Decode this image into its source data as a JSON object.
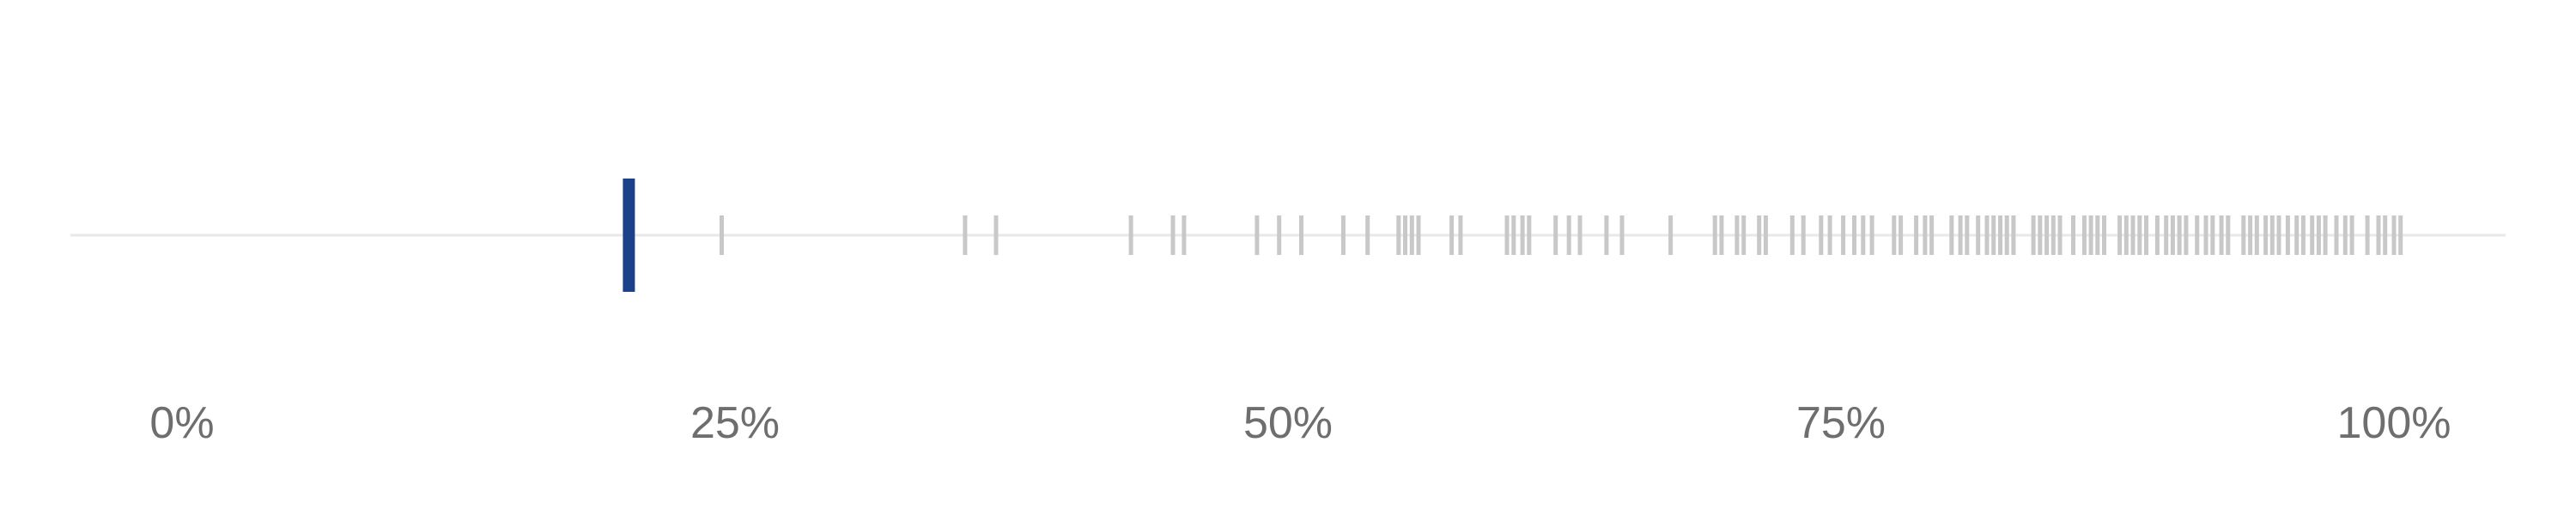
{
  "chart_data": {
    "type": "strip",
    "xlim": [
      0,
      100
    ],
    "x_tick_labels": [
      "0%",
      "25%",
      "50%",
      "75%",
      "100%"
    ],
    "x_tick_values": [
      0,
      25,
      50,
      75,
      100
    ],
    "highlight": {
      "value": 20.2,
      "color": "#1a4189"
    },
    "others": {
      "color": "#c8c8c8",
      "values": [
        24.4,
        35.4,
        36.8,
        42.9,
        44.8,
        45.3,
        48.6,
        49.6,
        50.6,
        52.5,
        53.6,
        55.0,
        55.3,
        55.6,
        55.9,
        57.4,
        57.8,
        59.9,
        60.2,
        60.6,
        60.9,
        62.1,
        62.7,
        63.2,
        64.4,
        65.1,
        67.3,
        69.3,
        69.6,
        70.3,
        70.6,
        71.3,
        71.6,
        72.8,
        73.3,
        74.1,
        74.5,
        75.1,
        75.6,
        76.0,
        76.4,
        77.4,
        77.7,
        78.4,
        78.8,
        79.1,
        80.0,
        80.4,
        80.7,
        81.2,
        81.6,
        81.9,
        82.2,
        82.5,
        82.8,
        83.7,
        84.0,
        84.3,
        84.6,
        84.9,
        85.5,
        86.0,
        86.3,
        86.6,
        86.9,
        87.6,
        87.9,
        88.2,
        88.5,
        88.8,
        89.3,
        89.7,
        90.0,
        90.3,
        90.6,
        91.1,
        91.5,
        91.8,
        92.2,
        92.5,
        93.2,
        93.5,
        93.8,
        94.2,
        94.5,
        94.8,
        95.2,
        95.6,
        95.9,
        96.3,
        96.6,
        96.9,
        97.4,
        97.8,
        98.1,
        98.8,
        99.3,
        99.6,
        100.0,
        100.3
      ]
    }
  }
}
